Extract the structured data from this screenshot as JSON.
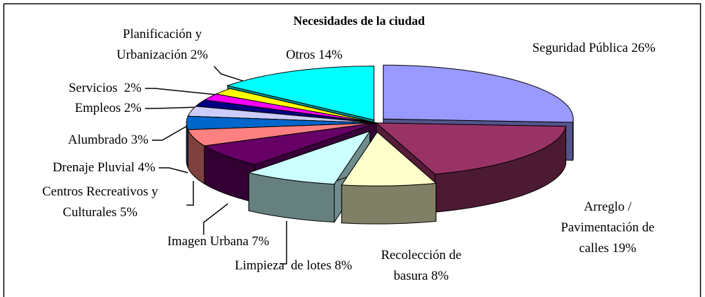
{
  "chart_data": {
    "type": "pie",
    "title": "Necesidades de la ciudad",
    "categories": [
      "Seguridad Pública",
      "Arreglo / Pavimentación de calles",
      "Recolección de basura",
      "Limpieza  de lotes",
      "Imagen Urbana",
      "Centros Recreativos y Culturales",
      "Drenaje Pluvial",
      "Alumbrado",
      "Empleos",
      "Servicios ",
      "Planificación y Urbanización",
      "Otros"
    ],
    "values": [
      26,
      19,
      8,
      8,
      7,
      5,
      4,
      3,
      2,
      2,
      2,
      14
    ],
    "value_labels": [
      "26%",
      "19%",
      "8%",
      "8%",
      "7%",
      "5%",
      "4%",
      "3%",
      "2%",
      "2%",
      "2%",
      "14%"
    ],
    "colors": [
      "#9999ff",
      "#993366",
      "#ffffcc",
      "#ccffff",
      "#660066",
      "#ff8080",
      "#0066cc",
      "#ccccff",
      "#000080",
      "#ff00ff",
      "#ffff00",
      "#00ffff"
    ]
  }
}
